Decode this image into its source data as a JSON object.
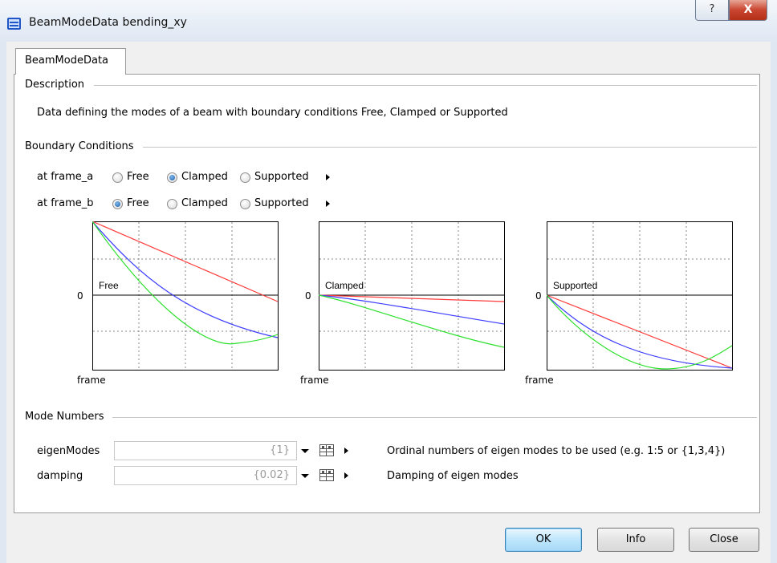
{
  "window": {
    "title": "BeamModeData bending_xy",
    "help_label": "?",
    "close_label": "X"
  },
  "tab": {
    "label": "BeamModeData"
  },
  "description": {
    "group_label": "Description",
    "text": "Data defining the modes of a beam with boundary conditions Free, Clamped or Supported"
  },
  "boundary": {
    "group_label": "Boundary Conditions",
    "rows": [
      {
        "label": "at frame_a",
        "options": [
          "Free",
          "Clamped",
          "Supported"
        ],
        "selected": "Clamped"
      },
      {
        "label": "at frame_b",
        "options": [
          "Free",
          "Clamped",
          "Supported"
        ],
        "selected": "Free"
      }
    ]
  },
  "plots": [
    {
      "title": "Free",
      "y_label": "0",
      "x_label": "frame"
    },
    {
      "title": "Clamped",
      "y_label": "0",
      "x_label": "frame"
    },
    {
      "title": "Supported",
      "y_label": "0",
      "x_label": "frame"
    }
  ],
  "mode_numbers": {
    "group_label": "Mode Numbers",
    "params": [
      {
        "label": "eigenModes",
        "value": "{1}",
        "description": "Ordinal numbers of eigen modes to be used (e.g. 1:5 or {1,3,4})"
      },
      {
        "label": "damping",
        "value": "{0.02}",
        "description": "Damping of eigen modes"
      }
    ]
  },
  "buttons": {
    "ok": "OK",
    "info": "Info",
    "close": "Close"
  },
  "colors": {
    "curve_red": "#ff3b3b",
    "curve_blue": "#3a3aff",
    "curve_green": "#2de02d",
    "accent": "#3c7fb1"
  }
}
